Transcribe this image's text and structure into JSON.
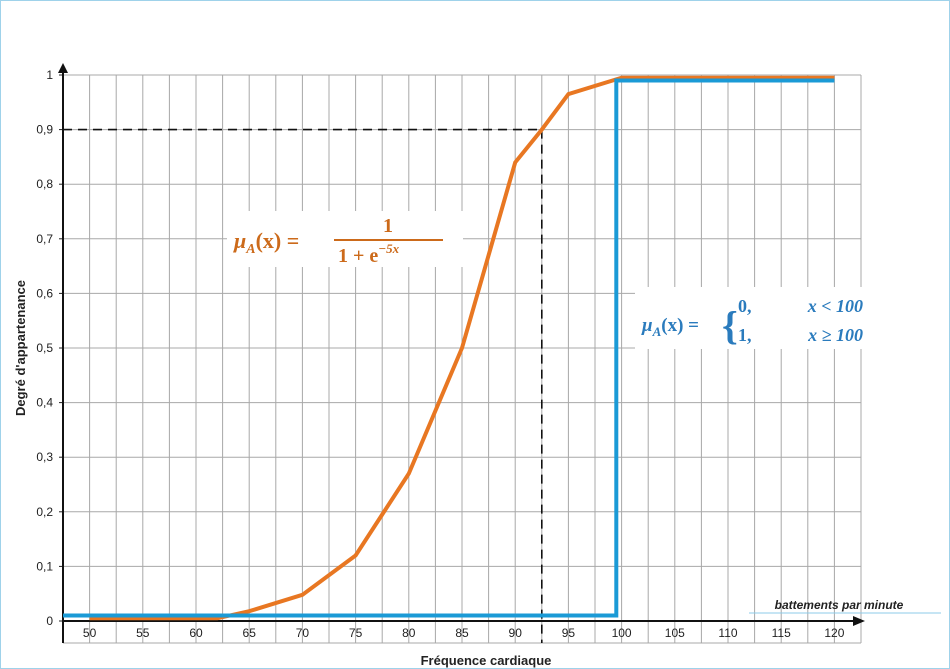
{
  "chart_data": {
    "type": "line",
    "title": "",
    "xlabel": "Fréquence cardiaque",
    "ylabel": "Degré d'appartenance",
    "x_unit_label": "battements par minute",
    "xlim": [
      47.5,
      122.5
    ],
    "ylim": [
      0,
      1
    ],
    "x_ticks": [
      50,
      55,
      60,
      65,
      70,
      75,
      80,
      85,
      90,
      95,
      100,
      105,
      110,
      115,
      120
    ],
    "y_ticks": [
      0,
      0.1,
      0.2,
      0.3,
      0.4,
      0.5,
      0.6,
      0.7,
      0.8,
      0.9,
      1
    ],
    "y_tick_labels": [
      "0",
      "0,1",
      "0,2",
      "0,3",
      "0,4",
      "0,5",
      "0,6",
      "0,7",
      "0,8",
      "0,9",
      "1"
    ],
    "grid": true,
    "series": [
      {
        "color": "#e87722",
        "x": [
          50,
          62,
          65,
          70,
          75,
          80,
          85,
          90,
          92.5,
          95,
          100,
          120
        ],
        "y": [
          0.005,
          0.005,
          0.018,
          0.048,
          0.12,
          0.27,
          0.5,
          0.84,
          0.9,
          0.965,
          0.995,
          0.995
        ]
      },
      {
        "color": "#1a9ad6",
        "x": [
          47.5,
          99.5,
          99.5,
          120
        ],
        "y": [
          0.01,
          0.01,
          0.99,
          0.99
        ]
      }
    ],
    "reference_lines": {
      "x": 92.5,
      "y": 0.9,
      "color": "#111111",
      "style": "dashed"
    },
    "annotations": {
      "sigmoid": {
        "lhs": "μ",
        "subscript": "A",
        "arg": "(x) =",
        "numerator": "1",
        "denominator": "1 + e",
        "exponent": "−5x",
        "color": "#cc6a1a"
      },
      "step": {
        "lhs": "μ",
        "subscript": "A",
        "arg": "(x) =",
        "brace": "{",
        "case1_value": "0,",
        "case1_condition": "x < 100",
        "case2_value": "1,",
        "case2_condition": "x ≥ 100",
        "color": "#2a7bbd"
      }
    }
  }
}
